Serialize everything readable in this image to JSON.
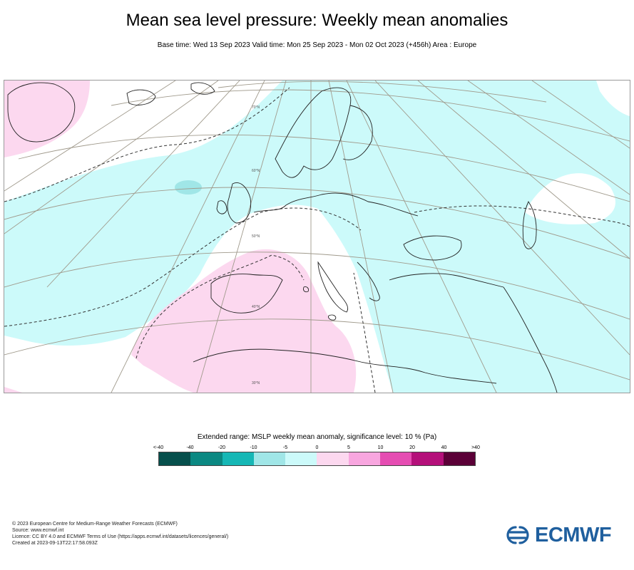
{
  "header": {
    "title": "Mean sea level pressure: Weekly mean anomalies",
    "subtitle": "Base time: Wed 13 Sep 2023 Valid time: Mon 25 Sep 2023 - Mon 02 Oct 2023 (+456h) Area : Europe"
  },
  "map": {
    "lat_labels": [
      "70°N",
      "60°N",
      "50°N",
      "40°N",
      "30°N"
    ],
    "colors": {
      "land_sea_outline": "#222222",
      "graticule": "#a09a8c",
      "significance_contour": "#333333",
      "background": "#ffffff"
    }
  },
  "legend": {
    "title": "Extended range: MSLP weekly mean anomaly, significance level: 10 % (Pa)",
    "ticks": [
      "<-40",
      "-40",
      "-20",
      "-10",
      "-5",
      "0",
      "5",
      "10",
      "20",
      "40",
      ">40"
    ],
    "colors": [
      "#064f4c",
      "#0b8882",
      "#16b7b5",
      "#a0e6e7",
      "#ccfafa",
      "#fcd8ef",
      "#f8a6df",
      "#e54db2",
      "#b4107a",
      "#5b0037"
    ]
  },
  "footer": {
    "lines": [
      "© 2023 European Centre for Medium-Range Weather Forecasts (ECMWF)",
      "Source: www.ecmwf.int",
      "Licence: CC BY 4.0 and ECMWF Terms of Use (https://apps.ecmwf.int/datasets/licences/general/)",
      "Created at 2023-09-13T22:17:58.093Z"
    ]
  },
  "logo": {
    "text": "ECMWF",
    "icon": "ecmwf-logo-icon",
    "color": "#1f5f9e"
  }
}
